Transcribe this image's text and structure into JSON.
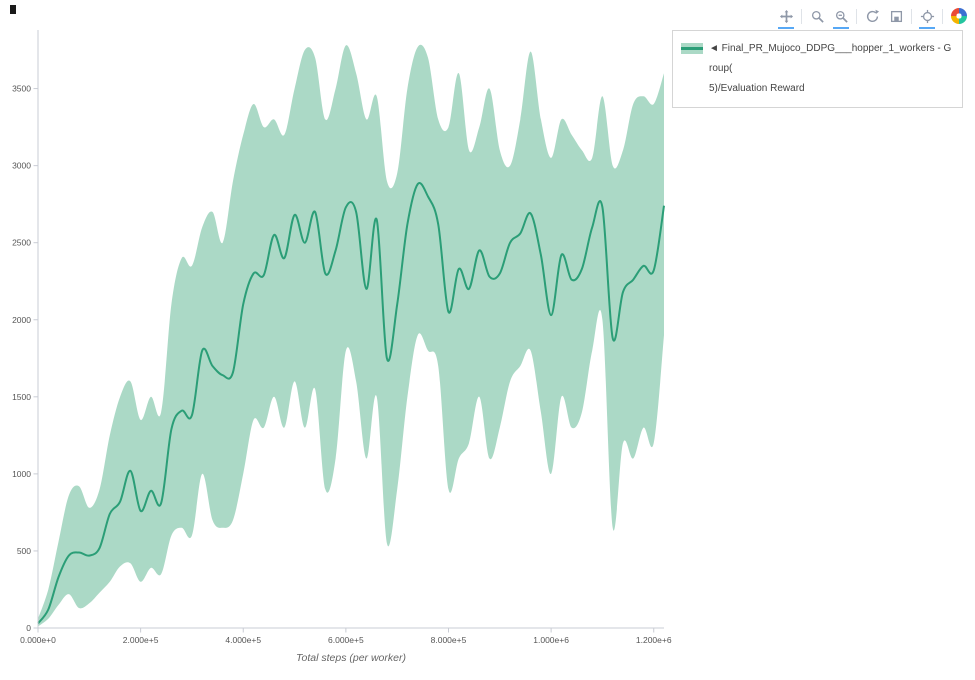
{
  "colors": {
    "line": "#2b9e77",
    "band": "rgba(44,160,113,0.4)",
    "axis": "#c9ccd4",
    "tick_text": "#555555",
    "modebar_icon": "#8f98a8",
    "modebar_active": "#57a8f5"
  },
  "legend": {
    "line1": "◄ Final_PR_Mujoco_DDPG___hopper_1_workers - Group(",
    "line2": "5)/Evaluation Reward"
  },
  "modebar": {
    "groups": [
      [
        "pan-icon"
      ],
      [
        "box-zoom-icon",
        "zoom-out-icon"
      ],
      [
        "autoscale-icon",
        "download-icon"
      ],
      [
        "spikeline-icon"
      ]
    ],
    "active": [
      "pan-icon",
      "zoom-out-icon",
      "spikeline-icon"
    ]
  },
  "chart_data": {
    "type": "line",
    "title": "",
    "xlabel": "Total steps (per worker)",
    "ylabel": "",
    "grid": false,
    "legend_position": "top-right",
    "xlim": [
      0,
      1220000
    ],
    "ylim": [
      0,
      3880
    ],
    "x_start": 0,
    "x_step": 20000,
    "x_ticks": {
      "values": [
        0,
        200000,
        400000,
        600000,
        800000,
        1000000,
        1200000
      ],
      "labels": [
        "0.000e+0",
        "2.000e+5",
        "4.000e+5",
        "6.000e+5",
        "8.000e+5",
        "1.000e+6",
        "1.200e+6"
      ]
    },
    "y_ticks": {
      "values": [
        0,
        500,
        1000,
        1500,
        2000,
        2500,
        3000,
        3500
      ],
      "labels": [
        "0",
        "500",
        "1000",
        "1500",
        "2000",
        "2500",
        "3000",
        "3500"
      ]
    },
    "series": [
      {
        "name": "Final_PR_Mujoco_DDPG___hopper_1_workers - Group(5)/Evaluation Reward",
        "mean": [
          30,
          120,
          330,
          470,
          490,
          470,
          520,
          740,
          820,
          1020,
          760,
          890,
          810,
          1290,
          1410,
          1380,
          1800,
          1700,
          1640,
          1660,
          2100,
          2300,
          2290,
          2550,
          2400,
          2680,
          2500,
          2700,
          2300,
          2450,
          2730,
          2700,
          2200,
          2650,
          1750,
          2100,
          2620,
          2880,
          2800,
          2620,
          2050,
          2330,
          2200,
          2450,
          2280,
          2300,
          2500,
          2560,
          2690,
          2420,
          2030,
          2420,
          2260,
          2330,
          2600,
          2730,
          1880,
          2180,
          2260,
          2350,
          2320,
          2740
        ],
        "upper": [
          60,
          250,
          560,
          860,
          920,
          780,
          900,
          1250,
          1500,
          1600,
          1350,
          1500,
          1400,
          2100,
          2400,
          2350,
          2600,
          2700,
          2500,
          2900,
          3200,
          3400,
          3250,
          3300,
          3200,
          3500,
          3750,
          3700,
          3300,
          3500,
          3780,
          3600,
          3300,
          3450,
          2900,
          2950,
          3500,
          3770,
          3700,
          3300,
          3250,
          3600,
          3100,
          3250,
          3500,
          3100,
          3000,
          3300,
          3740,
          3300,
          3050,
          3300,
          3200,
          3100,
          3050,
          3450,
          3000,
          3100,
          3400,
          3450,
          3400,
          3600
        ],
        "lower": [
          10,
          60,
          150,
          220,
          130,
          160,
          230,
          300,
          400,
          420,
          300,
          390,
          350,
          600,
          650,
          600,
          1000,
          700,
          650,
          700,
          1000,
          1350,
          1300,
          1500,
          1300,
          1600,
          1300,
          1550,
          900,
          1100,
          1800,
          1600,
          1100,
          1500,
          550,
          900,
          1500,
          1900,
          1800,
          1700,
          900,
          1100,
          1200,
          1500,
          1100,
          1300,
          1600,
          1700,
          1800,
          1400,
          1000,
          1500,
          1300,
          1400,
          1800,
          2000,
          650,
          1200,
          1100,
          1300,
          1200,
          1900
        ]
      }
    ]
  }
}
